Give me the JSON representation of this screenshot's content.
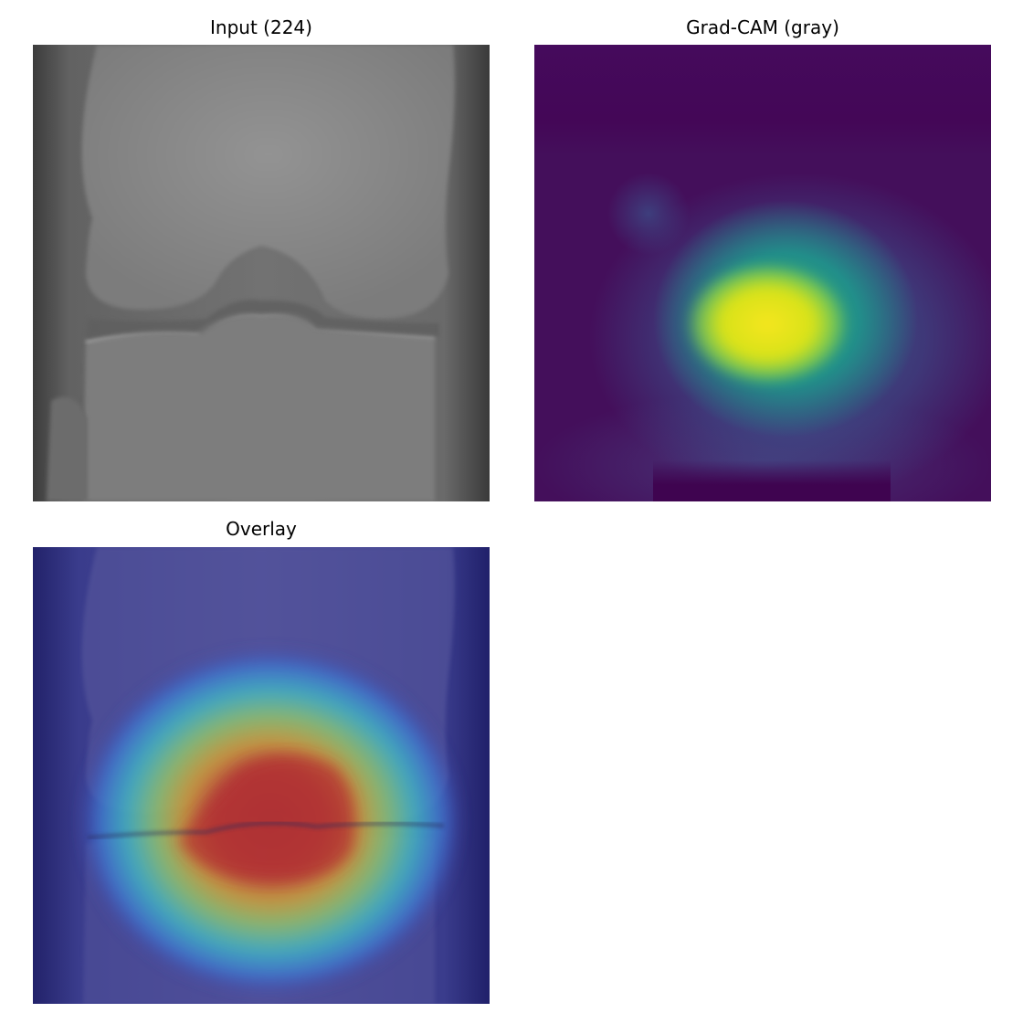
{
  "figure": {
    "panels": [
      {
        "title": "Input (224)"
      },
      {
        "title": "Grad-CAM (gray)"
      },
      {
        "title": "Overlay"
      }
    ]
  },
  "colors": {
    "background": "#ffffff",
    "xray_bg": "#6f6f6f",
    "viridis_low": "#440154",
    "viridis_high": "#fde725",
    "jet_low": "#30308f",
    "jet_high": "#c02828"
  }
}
